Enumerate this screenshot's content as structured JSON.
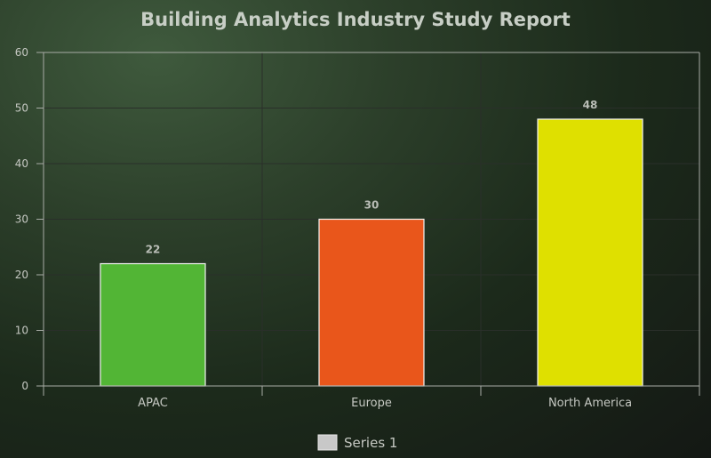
{
  "chart_data": {
    "type": "bar",
    "title": "Building Analytics Industry Study Report",
    "categories": [
      "APAC",
      "Europe",
      "North America"
    ],
    "series": [
      {
        "name": "Series 1",
        "values": [
          22,
          30,
          48
        ],
        "colors": [
          "#52b535",
          "#e9561b",
          "#dfe000"
        ]
      }
    ],
    "xlabel": "",
    "ylabel": "",
    "ylim": [
      0,
      60
    ],
    "yticks": [
      0,
      10,
      20,
      30,
      40,
      50,
      60
    ],
    "grid": true,
    "legend_position": "bottom",
    "legend_swatch_color": "#c8c8c8"
  }
}
